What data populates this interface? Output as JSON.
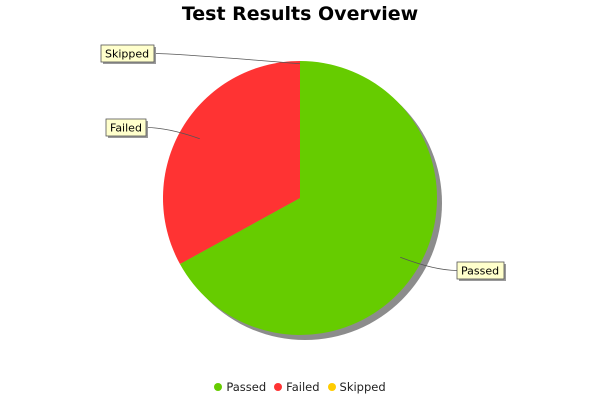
{
  "chart_data": {
    "type": "pie",
    "title": "Test Results Overview",
    "slices": [
      {
        "label": "Passed",
        "value": 67,
        "color": "#66cc00"
      },
      {
        "label": "Failed",
        "value": 33,
        "color": "#ff3333"
      },
      {
        "label": "Skipped",
        "value": 0,
        "color": "#ffcc00"
      }
    ],
    "legend": {
      "placement": "bottom",
      "items": [
        "Passed",
        "Failed",
        "Skipped"
      ]
    }
  }
}
